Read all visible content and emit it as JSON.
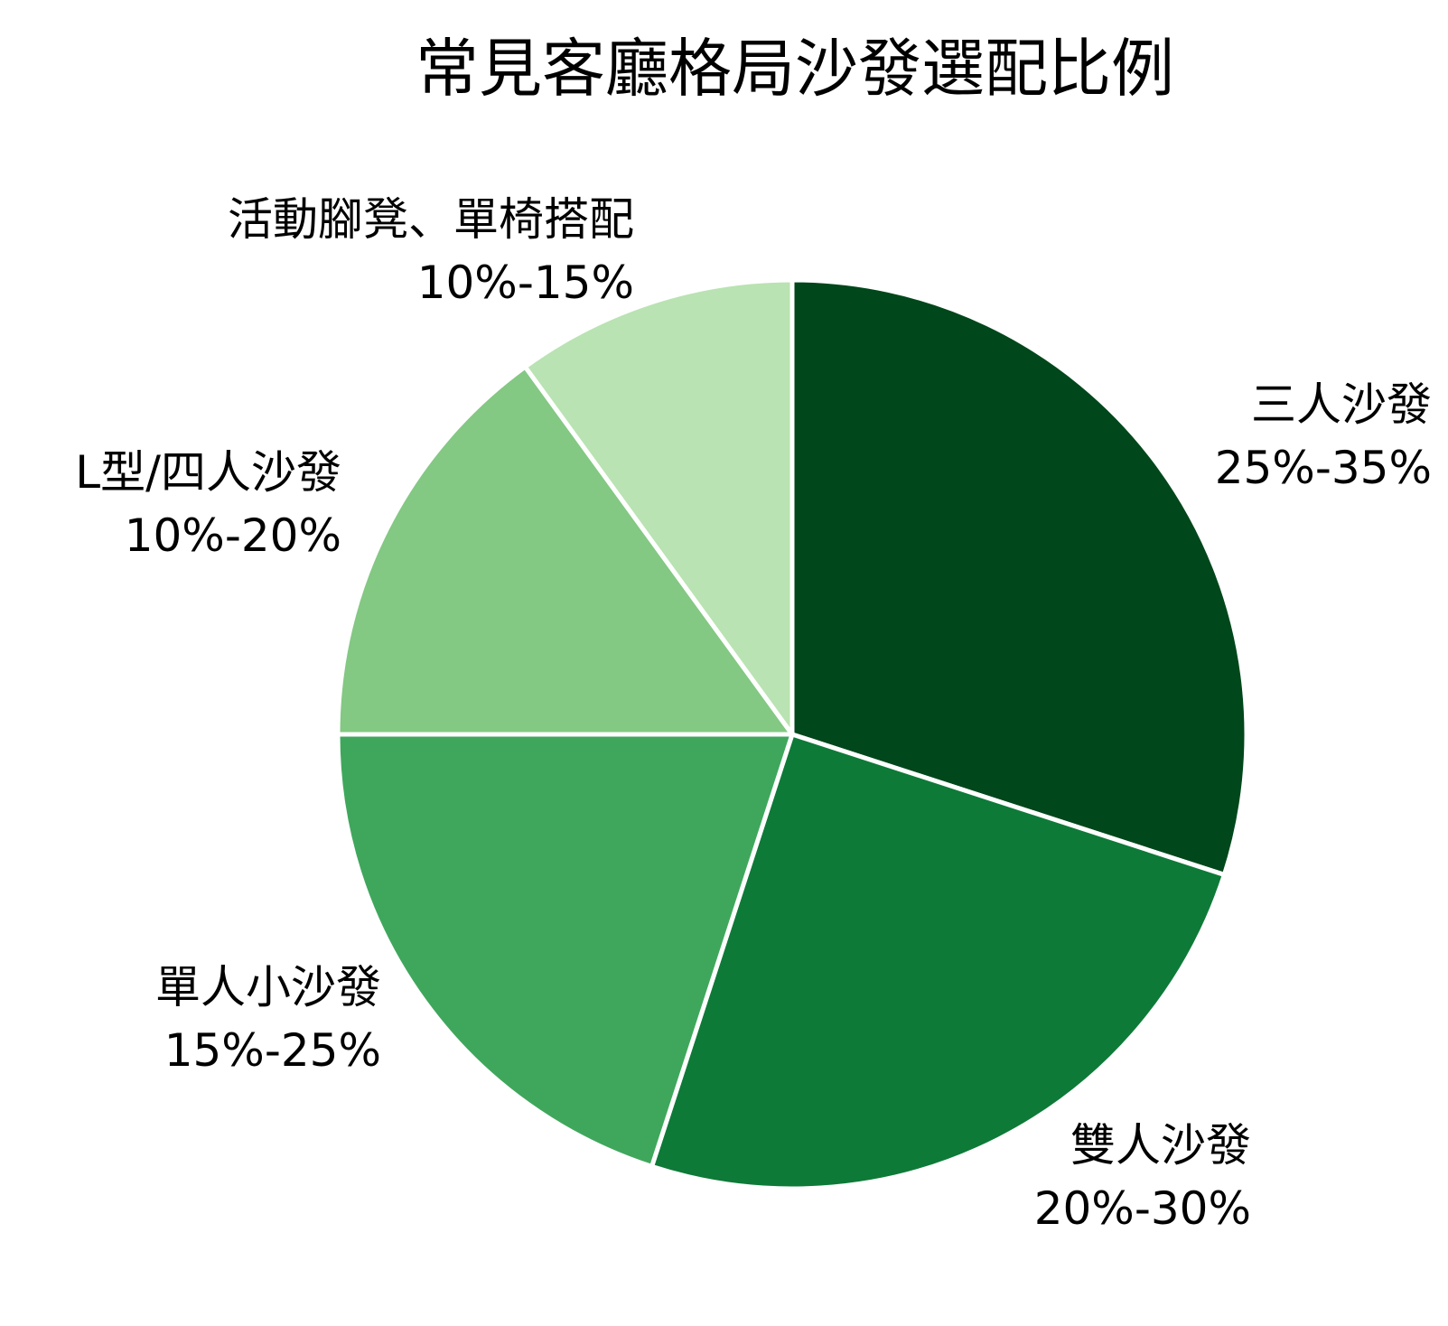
{
  "chart_data": {
    "type": "pie",
    "title": "常見客廳格局沙發選配比例",
    "slices": [
      {
        "name": "三人沙發",
        "range": "25%-35%",
        "value": 30,
        "color": "#00471b"
      },
      {
        "name": "雙人沙發",
        "range": "20%-30%",
        "value": 25,
        "color": "#0e7a38"
      },
      {
        "name": "單人小沙發",
        "range": "15%-25%",
        "value": 20,
        "color": "#3fa75c"
      },
      {
        "name": "L型/四人沙發",
        "range": "10%-20%",
        "value": 15,
        "color": "#83c883"
      },
      {
        "name": "活動腳凳、單椅搭配",
        "range": "10%-15%",
        "value": 10,
        "color": "#b9e3b2"
      }
    ],
    "start_angle_deg": 0,
    "direction": "clockwise",
    "legend": "none"
  }
}
